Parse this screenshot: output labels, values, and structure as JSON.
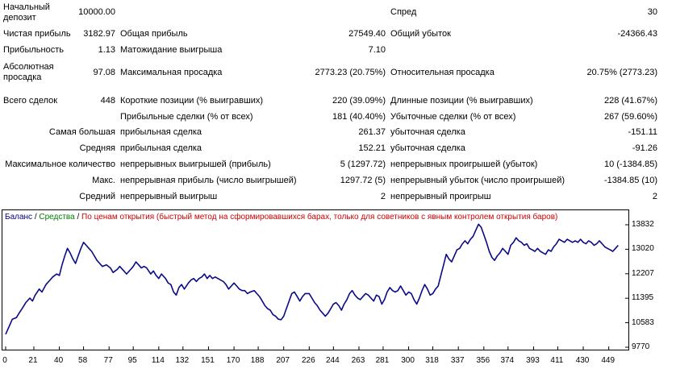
{
  "report": {
    "rows": [
      {
        "l1": "Начальный\nдепозит",
        "v1": "10000.00",
        "l2": "",
        "v2": "",
        "l3": "Спред",
        "v3": "30"
      },
      {
        "l1": "Чистая прибыль",
        "v1": "3182.97",
        "l2": "Общая прибыль",
        "v2": "27549.40",
        "l3": "Общий убыток",
        "v3": "-24366.43"
      },
      {
        "l1": "Прибыльность",
        "v1": "1.13",
        "l2": "Матожидание выигрыша",
        "v2": "7.10",
        "l3": "",
        "v3": ""
      },
      {
        "l1": "Абсолютная\nпросадка",
        "v1": "97.08",
        "l2": "Максимальная просадка",
        "v2": "2773.23 (20.75%)",
        "l3": "Относительная просадка",
        "v3": "20.75% (2773.23)"
      },
      {
        "l1": "Всего сделок",
        "v1": "448",
        "l2": "Короткие позиции (% выигравших)",
        "v2": "220 (39.09%)",
        "l3": "Длинные позиции (% выигравших)",
        "v3": "228 (41.67%)"
      },
      {
        "l1": "",
        "v1": "",
        "l2": "Прибыльные сделки (% от всех)",
        "v2": "181 (40.40%)",
        "l3": "Убыточные сделки (% от всех)",
        "v3": "267 (59.60%)"
      },
      {
        "l1": "Самая большая",
        "v1": "",
        "l2": "прибыльная сделка",
        "v2": "261.37",
        "l3": "убыточная сделка",
        "v3": "-151.11"
      },
      {
        "l1": "Средняя",
        "v1": "",
        "l2": "прибыльная сделка",
        "v2": "152.21",
        "l3": "убыточная сделка",
        "v3": "-91.26"
      },
      {
        "l1": "Максимальное количество",
        "v1": "",
        "l2": "непрерывных выигрышей (прибыль)",
        "v2": "5 (1297.72)",
        "l3": "непрерывных проигрышей (убыток)",
        "v3": "10 (-1384.85)"
      },
      {
        "l1": "Макс.",
        "v1": "",
        "l2": "непрерывная прибыль (число выигрышей)",
        "v2": "1297.72 (5)",
        "l3": "непрерывный убыток (число проигрышей)",
        "v3": "-1384.85 (10)"
      },
      {
        "l1": "Средний",
        "v1": "",
        "l2": "непрерывный выигрыш",
        "v2": "2",
        "l3": "непрерывный проигрыш",
        "v3": "2"
      }
    ]
  },
  "legend": {
    "balance": "Баланс",
    "sep1": " / ",
    "equity": "Средства",
    "sep2": " / ",
    "mode": "По ценам открытия (быстрый метод на сформировавшихся барах, только для советников с явным контролем открытия баров)"
  },
  "colors": {
    "balance": "#000080",
    "equity": "#008000",
    "mode": "#cc0000",
    "line": "#0a0a8a"
  },
  "chart_data": {
    "type": "line",
    "title": "",
    "xlabel": "",
    "ylabel": "",
    "x_ticks": [
      "0",
      "21",
      "40",
      "58",
      "77",
      "95",
      "114",
      "132",
      "151",
      "170",
      "188",
      "207",
      "226",
      "244",
      "263",
      "281",
      "300",
      "318",
      "337",
      "356",
      "374",
      "393",
      "411",
      "430",
      "449"
    ],
    "y_ticks": [
      "13832",
      "13020",
      "12207",
      "11395",
      "10583",
      "9770"
    ],
    "ylim": [
      9770,
      13832
    ],
    "xlim": [
      0,
      460
    ],
    "grid": false,
    "series": [
      {
        "values_xy": [
          [
            0,
            10200
          ],
          [
            3,
            10500
          ],
          [
            5,
            10700
          ],
          [
            8,
            10750
          ],
          [
            10,
            10900
          ],
          [
            13,
            11100
          ],
          [
            15,
            11250
          ],
          [
            18,
            11400
          ],
          [
            20,
            11300
          ],
          [
            22,
            11500
          ],
          [
            25,
            11700
          ],
          [
            27,
            11600
          ],
          [
            30,
            11850
          ],
          [
            33,
            12000
          ],
          [
            35,
            12100
          ],
          [
            38,
            12200
          ],
          [
            40,
            12150
          ],
          [
            42,
            12500
          ],
          [
            44,
            12800
          ],
          [
            46,
            13050
          ],
          [
            48,
            12900
          ],
          [
            50,
            12700
          ],
          [
            52,
            12550
          ],
          [
            54,
            12800
          ],
          [
            56,
            13050
          ],
          [
            58,
            13250
          ],
          [
            60,
            13150
          ],
          [
            62,
            13050
          ],
          [
            64,
            12950
          ],
          [
            66,
            12800
          ],
          [
            68,
            12650
          ],
          [
            70,
            12550
          ],
          [
            72,
            12450
          ],
          [
            75,
            12500
          ],
          [
            78,
            12400
          ],
          [
            80,
            12250
          ],
          [
            83,
            12350
          ],
          [
            85,
            12450
          ],
          [
            88,
            12300
          ],
          [
            90,
            12200
          ],
          [
            93,
            12350
          ],
          [
            95,
            12450
          ],
          [
            97,
            12600
          ],
          [
            99,
            12500
          ],
          [
            101,
            12400
          ],
          [
            103,
            12450
          ],
          [
            105,
            12400
          ],
          [
            108,
            12200
          ],
          [
            110,
            12300
          ],
          [
            112,
            12150
          ],
          [
            114,
            12050
          ],
          [
            116,
            12200
          ],
          [
            119,
            12050
          ],
          [
            121,
            11900
          ],
          [
            123,
            11850
          ],
          [
            125,
            11600
          ],
          [
            127,
            11500
          ],
          [
            129,
            11750
          ],
          [
            131,
            11850
          ],
          [
            133,
            11700
          ],
          [
            136,
            11900
          ],
          [
            138,
            12000
          ],
          [
            140,
            12050
          ],
          [
            142,
            11950
          ],
          [
            144,
            12050
          ],
          [
            146,
            12100
          ],
          [
            148,
            12200
          ],
          [
            150,
            12050
          ],
          [
            152,
            12150
          ],
          [
            154,
            12050
          ],
          [
            156,
            12100
          ],
          [
            158,
            12050
          ],
          [
            160,
            12000
          ],
          [
            162,
            11950
          ],
          [
            164,
            11850
          ],
          [
            166,
            11700
          ],
          [
            168,
            11800
          ],
          [
            170,
            11900
          ],
          [
            172,
            11800
          ],
          [
            174,
            11700
          ],
          [
            176,
            11650
          ],
          [
            178,
            11650
          ],
          [
            180,
            11550
          ],
          [
            182,
            11600
          ],
          [
            185,
            11650
          ],
          [
            187,
            11550
          ],
          [
            189,
            11450
          ],
          [
            191,
            11300
          ],
          [
            193,
            11150
          ],
          [
            195,
            11050
          ],
          [
            197,
            11000
          ],
          [
            199,
            10850
          ],
          [
            201,
            10800
          ],
          [
            203,
            10700
          ],
          [
            205,
            10680
          ],
          [
            207,
            10800
          ],
          [
            209,
            11050
          ],
          [
            211,
            11300
          ],
          [
            213,
            11550
          ],
          [
            215,
            11600
          ],
          [
            217,
            11450
          ],
          [
            219,
            11300
          ],
          [
            221,
            11450
          ],
          [
            223,
            11550
          ],
          [
            226,
            11550
          ],
          [
            228,
            11400
          ],
          [
            230,
            11250
          ],
          [
            232,
            11150
          ],
          [
            234,
            11000
          ],
          [
            236,
            10900
          ],
          [
            238,
            10800
          ],
          [
            240,
            10900
          ],
          [
            242,
            11050
          ],
          [
            244,
            11200
          ],
          [
            246,
            11250
          ],
          [
            248,
            11150
          ],
          [
            250,
            11000
          ],
          [
            252,
            11200
          ],
          [
            254,
            11350
          ],
          [
            256,
            11550
          ],
          [
            258,
            11650
          ],
          [
            260,
            11500
          ],
          [
            262,
            11400
          ],
          [
            264,
            11350
          ],
          [
            266,
            11450
          ],
          [
            268,
            11550
          ],
          [
            270,
            11500
          ],
          [
            272,
            11400
          ],
          [
            274,
            11300
          ],
          [
            276,
            11500
          ],
          [
            278,
            11450
          ],
          [
            280,
            11200
          ],
          [
            282,
            11350
          ],
          [
            284,
            11600
          ],
          [
            286,
            11750
          ],
          [
            288,
            11650
          ],
          [
            290,
            11600
          ],
          [
            292,
            11650
          ],
          [
            294,
            11800
          ],
          [
            296,
            11650
          ],
          [
            298,
            11500
          ],
          [
            300,
            11600
          ],
          [
            302,
            11550
          ],
          [
            304,
            11350
          ],
          [
            306,
            11200
          ],
          [
            308,
            11400
          ],
          [
            310,
            11650
          ],
          [
            312,
            11850
          ],
          [
            314,
            11700
          ],
          [
            316,
            11500
          ],
          [
            318,
            11550
          ],
          [
            320,
            11700
          ],
          [
            322,
            11800
          ],
          [
            324,
            12150
          ],
          [
            326,
            12500
          ],
          [
            328,
            12850
          ],
          [
            330,
            12700
          ],
          [
            332,
            12600
          ],
          [
            334,
            12800
          ],
          [
            336,
            13000
          ],
          [
            338,
            13050
          ],
          [
            340,
            13200
          ],
          [
            342,
            13300
          ],
          [
            344,
            13200
          ],
          [
            346,
            13350
          ],
          [
            348,
            13450
          ],
          [
            350,
            13650
          ],
          [
            352,
            13850
          ],
          [
            354,
            13750
          ],
          [
            356,
            13500
          ],
          [
            358,
            13250
          ],
          [
            360,
            12950
          ],
          [
            362,
            12750
          ],
          [
            364,
            12650
          ],
          [
            366,
            12800
          ],
          [
            368,
            12900
          ],
          [
            370,
            13050
          ],
          [
            372,
            12950
          ],
          [
            374,
            12850
          ],
          [
            376,
            13150
          ],
          [
            378,
            13250
          ],
          [
            380,
            13400
          ],
          [
            382,
            13300
          ],
          [
            384,
            13250
          ],
          [
            386,
            13150
          ],
          [
            388,
            13200
          ],
          [
            390,
            13050
          ],
          [
            392,
            13000
          ],
          [
            394,
            12950
          ],
          [
            396,
            13050
          ],
          [
            398,
            12950
          ],
          [
            400,
            12900
          ],
          [
            402,
            12850
          ],
          [
            404,
            13000
          ],
          [
            406,
            12950
          ],
          [
            408,
            13100
          ],
          [
            410,
            13200
          ],
          [
            412,
            13350
          ],
          [
            414,
            13300
          ],
          [
            416,
            13250
          ],
          [
            418,
            13350
          ],
          [
            420,
            13300
          ],
          [
            422,
            13250
          ],
          [
            424,
            13300
          ],
          [
            426,
            13250
          ],
          [
            428,
            13350
          ],
          [
            430,
            13250
          ],
          [
            432,
            13200
          ],
          [
            434,
            13300
          ],
          [
            436,
            13250
          ],
          [
            438,
            13150
          ],
          [
            440,
            13200
          ],
          [
            442,
            13300
          ],
          [
            444,
            13200
          ],
          [
            446,
            13100
          ],
          [
            448,
            13050
          ],
          [
            450,
            13000
          ],
          [
            452,
            12950
          ],
          [
            454,
            13050
          ],
          [
            456,
            13150
          ]
        ]
      }
    ]
  }
}
